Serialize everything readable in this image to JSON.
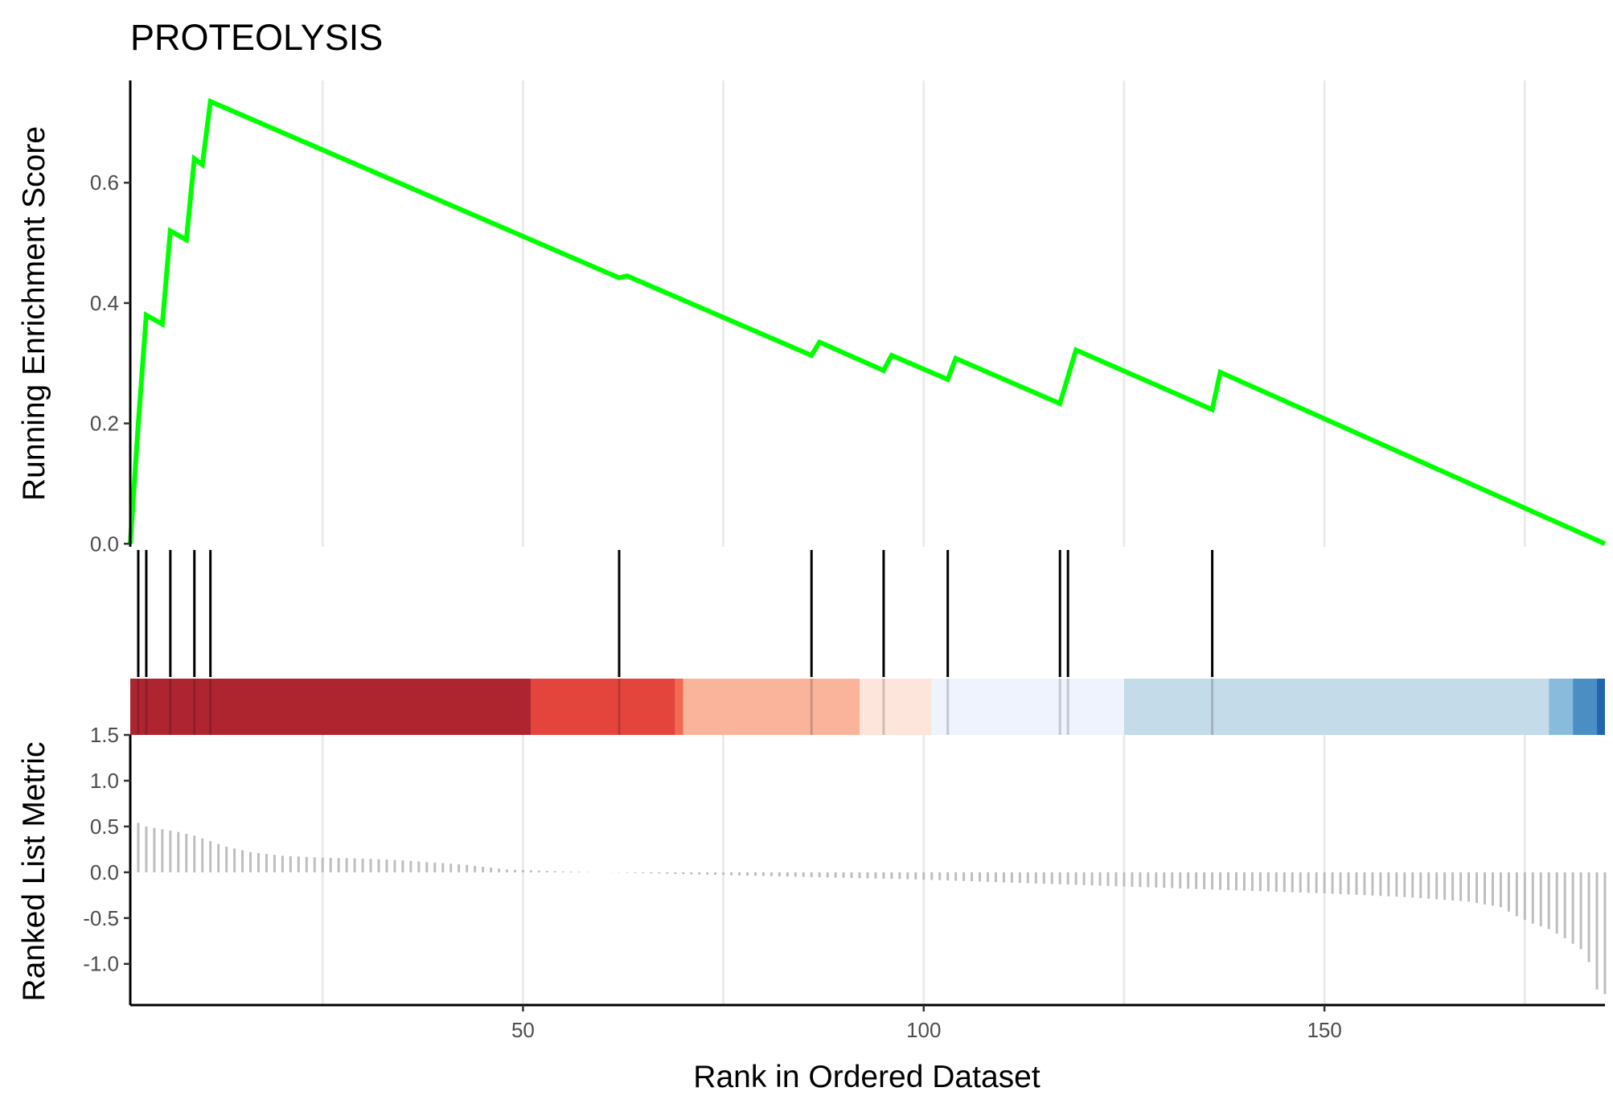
{
  "chart_data": {
    "type": "line",
    "title": "PROTEOLYSIS",
    "xlabel": "Rank in Ordered Dataset",
    "xlim": [
      1,
      185
    ],
    "x_ticks": [
      50,
      100,
      150
    ],
    "x_tick_labels": [
      "50",
      "100",
      "150"
    ],
    "grid": "vertical major and minor",
    "panels": [
      {
        "name": "running-enrichment",
        "type": "line",
        "ylabel": "Running Enrichment Score",
        "ylim": [
          -0.005,
          0.77
        ],
        "y_ticks": [
          0.0,
          0.2,
          0.4,
          0.6
        ],
        "y_tick_labels": [
          "0.0",
          "0.2",
          "0.4",
          "0.6"
        ],
        "line_color": "#00FF00",
        "points": [
          [
            1,
            0.0
          ],
          [
            2,
            0.2
          ],
          [
            3,
            0.38
          ],
          [
            5,
            0.365
          ],
          [
            6,
            0.52
          ],
          [
            8,
            0.505
          ],
          [
            9,
            0.64
          ],
          [
            10,
            0.63
          ],
          [
            11,
            0.735
          ],
          [
            62,
            0.442
          ],
          [
            63,
            0.445
          ],
          [
            86,
            0.313
          ],
          [
            87,
            0.335
          ],
          [
            95,
            0.288
          ],
          [
            96,
            0.313
          ],
          [
            103,
            0.273
          ],
          [
            104,
            0.308
          ],
          [
            117,
            0.233
          ],
          [
            119,
            0.322
          ],
          [
            136,
            0.223
          ],
          [
            137,
            0.285
          ],
          [
            185,
            0.0
          ]
        ]
      },
      {
        "name": "hit-positions",
        "type": "rug",
        "hits": [
          2,
          3,
          6,
          9,
          11,
          62,
          86,
          95,
          103,
          117,
          118,
          136
        ],
        "color": "#000000"
      },
      {
        "name": "rank-color-band",
        "type": "heatmap",
        "segments": [
          {
            "from": 1,
            "to": 51,
            "color": "#AE2530"
          },
          {
            "from": 51,
            "to": 69,
            "color": "#E3443C"
          },
          {
            "from": 69,
            "to": 70,
            "color": "#F26A52"
          },
          {
            "from": 70,
            "to": 92,
            "color": "#FBB49C"
          },
          {
            "from": 92,
            "to": 101,
            "color": "#FDE5DC"
          },
          {
            "from": 101,
            "to": 125,
            "color": "#EEF3FD"
          },
          {
            "from": 125,
            "to": 178,
            "color": "#C4DBE9"
          },
          {
            "from": 178,
            "to": 181,
            "color": "#89BCDC"
          },
          {
            "from": 181,
            "to": 184,
            "color": "#4B8EC4"
          },
          {
            "from": 184,
            "to": 185,
            "color": "#2166AC"
          }
        ]
      },
      {
        "name": "ranked-list-metric",
        "type": "bar",
        "ylabel": "Ranked List Metric",
        "ylim": [
          -1.45,
          1.5
        ],
        "y_ticks": [
          1.5,
          1.0,
          0.5,
          0.0,
          -0.5,
          -1.0
        ],
        "y_tick_labels": [
          "1.5",
          "1.0",
          "0.5",
          "0.0",
          "-0.5",
          "-1.0"
        ],
        "bar_color": "#BEBEBE",
        "metric_curve": [
          [
            1,
            0.66
          ],
          [
            2,
            0.54
          ],
          [
            3,
            0.5
          ],
          [
            5,
            0.47
          ],
          [
            7,
            0.44
          ],
          [
            9,
            0.4
          ],
          [
            11,
            0.34
          ],
          [
            13,
            0.28
          ],
          [
            16,
            0.22
          ],
          [
            20,
            0.18
          ],
          [
            25,
            0.16
          ],
          [
            30,
            0.15
          ],
          [
            35,
            0.13
          ],
          [
            40,
            0.1
          ],
          [
            43,
            0.08
          ],
          [
            48,
            0.03
          ],
          [
            55,
            0.01
          ],
          [
            60,
            0.0
          ],
          [
            70,
            -0.02
          ],
          [
            80,
            -0.04
          ],
          [
            90,
            -0.06
          ],
          [
            100,
            -0.08
          ],
          [
            110,
            -0.11
          ],
          [
            120,
            -0.14
          ],
          [
            130,
            -0.17
          ],
          [
            140,
            -0.2
          ],
          [
            150,
            -0.23
          ],
          [
            160,
            -0.27
          ],
          [
            168,
            -0.32
          ],
          [
            172,
            -0.38
          ],
          [
            174,
            -0.48
          ],
          [
            176,
            -0.56
          ],
          [
            178,
            -0.62
          ],
          [
            180,
            -0.72
          ],
          [
            182,
            -0.84
          ],
          [
            183,
            -0.98
          ],
          [
            184,
            -1.28
          ],
          [
            185,
            -1.33
          ]
        ]
      }
    ]
  }
}
